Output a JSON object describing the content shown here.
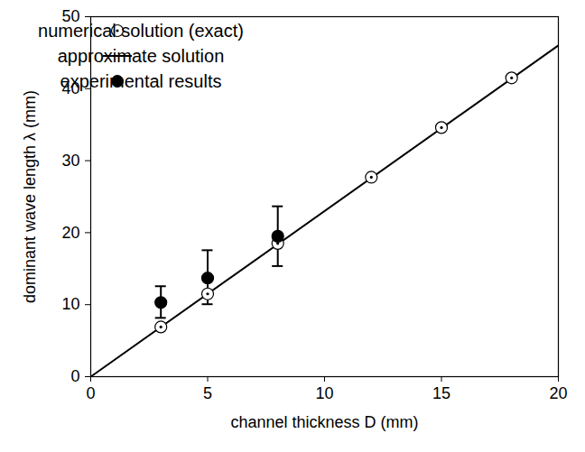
{
  "chart_data": {
    "type": "scatter",
    "xlabel": "channel thickness D (mm)",
    "ylabel": "dominant wave length λ (mm)",
    "xlim": [
      0,
      20
    ],
    "xticks": [
      0,
      5,
      10,
      15,
      20
    ],
    "ylim": [
      0,
      50
    ],
    "yticks": [
      0,
      10,
      20,
      30,
      40,
      50
    ],
    "legend": "top-left",
    "series": [
      {
        "name": "numerical solution (exact)",
        "type": "scatter",
        "marker": "open circle",
        "color": "#000000",
        "x": [
          3,
          5,
          8,
          12,
          15,
          18
        ],
        "values": [
          6.9,
          11.5,
          18.5,
          27.7,
          34.6,
          41.5
        ]
      },
      {
        "name": "approximate solution",
        "type": "line",
        "line_style": "solid",
        "color": "#000000",
        "x": [
          0,
          20
        ],
        "values": [
          0,
          46
        ]
      },
      {
        "name": "experimental results",
        "type": "scatter",
        "marker": "filled circle",
        "color": "#000000",
        "x": [
          3,
          5,
          8
        ],
        "values": [
          10.3,
          13.7,
          19.5
        ],
        "error_low": [
          8.1,
          10.0,
          15.3
        ],
        "error_high": [
          12.5,
          17.5,
          23.6
        ]
      }
    ]
  }
}
